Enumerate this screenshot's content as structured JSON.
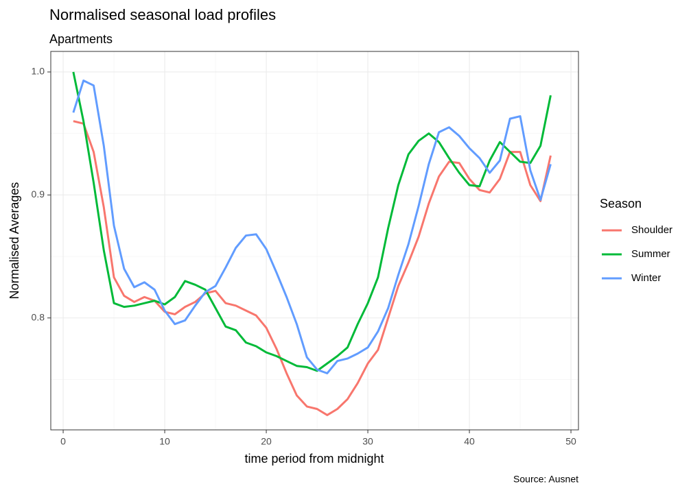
{
  "chart_data": {
    "type": "line",
    "title": "Normalised seasonal load profiles",
    "subtitle": "Apartments",
    "x_label": "time period from midnight",
    "y_label": "Normalised Averages",
    "caption": "Source: Ausnet",
    "legend_title": "Season",
    "legend_position": "right",
    "grid": true,
    "x": [
      1,
      2,
      3,
      4,
      5,
      6,
      7,
      8,
      9,
      10,
      11,
      12,
      13,
      14,
      15,
      16,
      17,
      18,
      19,
      20,
      21,
      22,
      23,
      24,
      25,
      26,
      27,
      28,
      29,
      30,
      31,
      32,
      33,
      34,
      35,
      36,
      37,
      38,
      39,
      40,
      41,
      42,
      43,
      44,
      45,
      46,
      47,
      48
    ],
    "xlim": [
      -1.22,
      50.74
    ],
    "xticks": [
      0,
      10,
      20,
      30,
      40,
      50
    ],
    "ylim": [
      0.709,
      1.0167
    ],
    "yticks": [
      0.8,
      0.9,
      {
        "value": 1,
        "label": "1.0"
      }
    ],
    "series": [
      {
        "name": "Shoulder",
        "color": "#F8766D",
        "values": [
          0.96,
          0.958,
          0.935,
          0.89,
          0.833,
          0.818,
          0.813,
          0.817,
          0.814,
          0.805,
          0.803,
          0.809,
          0.813,
          0.82,
          0.822,
          0.812,
          0.81,
          0.806,
          0.802,
          0.792,
          0.775,
          0.755,
          0.737,
          0.728,
          0.726,
          0.721,
          0.726,
          0.734,
          0.747,
          0.763,
          0.774,
          0.8,
          0.826,
          0.845,
          0.866,
          0.893,
          0.915,
          0.927,
          0.926,
          0.913,
          0.904,
          0.902,
          0.913,
          0.935,
          0.935,
          0.908,
          0.895,
          0.932
        ]
      },
      {
        "name": "Summer",
        "color": "#00BA38",
        "values": [
          1.0,
          0.96,
          0.91,
          0.855,
          0.812,
          0.809,
          0.81,
          0.812,
          0.814,
          0.811,
          0.817,
          0.83,
          0.827,
          0.823,
          0.808,
          0.793,
          0.79,
          0.78,
          0.777,
          0.772,
          0.769,
          0.765,
          0.761,
          0.76,
          0.757,
          0.763,
          0.769,
          0.776,
          0.795,
          0.812,
          0.833,
          0.873,
          0.908,
          0.933,
          0.944,
          0.95,
          0.943,
          0.93,
          0.918,
          0.908,
          0.907,
          0.928,
          0.943,
          0.935,
          0.927,
          0.926,
          0.94,
          0.981
        ]
      },
      {
        "name": "Winter",
        "color": "#619CFF",
        "values": [
          0.967,
          0.993,
          0.989,
          0.94,
          0.875,
          0.84,
          0.825,
          0.829,
          0.823,
          0.806,
          0.795,
          0.798,
          0.81,
          0.821,
          0.826,
          0.841,
          0.857,
          0.867,
          0.868,
          0.856,
          0.837,
          0.817,
          0.795,
          0.768,
          0.758,
          0.755,
          0.765,
          0.767,
          0.771,
          0.776,
          0.789,
          0.808,
          0.835,
          0.86,
          0.891,
          0.925,
          0.951,
          0.955,
          0.948,
          0.938,
          0.93,
          0.918,
          0.928,
          0.962,
          0.964,
          0.92,
          0.896,
          0.925
        ]
      }
    ]
  }
}
